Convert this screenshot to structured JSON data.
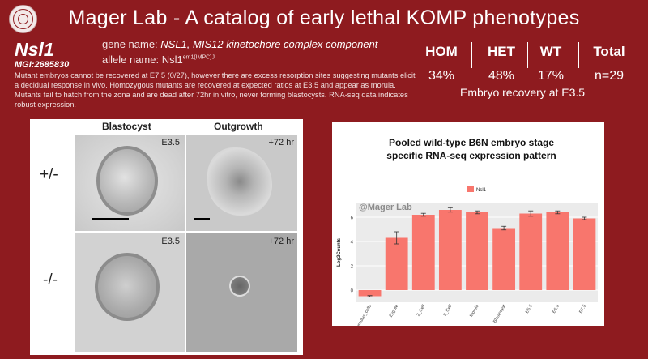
{
  "header": {
    "title": "Mager Lab - A catalog of early lethal KOMP phenotypes",
    "gene_symbol": "Nsl1",
    "mgi_id": "MGI:2685830",
    "gene_name_label": "gene name: ",
    "gene_name": "NSL1, MIS12 kinetochore complex component",
    "allele_label": "allele name: ",
    "allele_base": "Nsl1",
    "allele_sup": "em1(IMPC)J"
  },
  "description": "Mutant embryos cannot be recovered at E7.5 (0/27), however there are excess resorption sites suggesting mutants elicit a decidual response in vivo. Homozygous mutants are recovered at expected ratios at E3.5 and appear as morula. Mutants fail to hatch from the zona and are dead after 72hr in vitro, never forming blastocysts. RNA-seq data indicates robust expression.",
  "recovery": {
    "columns": [
      {
        "label": "HOM",
        "value": "34%"
      },
      {
        "label": "HET",
        "value": "48%"
      },
      {
        "label": "WT",
        "value": "17%"
      },
      {
        "label": "Total",
        "value": "n=29"
      }
    ],
    "caption": "Embryo recovery at E3.5"
  },
  "images": {
    "col_blastocyst": "Blastocyst",
    "col_outgrowth": "Outgrowth",
    "row_het": "+/-",
    "row_hom": "-/-",
    "stage_e35": "E3.5",
    "stage_72": "+72 hr"
  },
  "chart_data": {
    "type": "bar",
    "title": "Pooled wild-type B6N embryo stage specific RNA-seq expression pattern",
    "watermark": "@Mager Lab",
    "ylabel": "Log2Counts",
    "xlabel": "",
    "legend": {
      "label": "Nsl1",
      "position": "top-right",
      "color": "#f8766d"
    },
    "categories": [
      "Cumulus_cells",
      "Zygote",
      "2_Cell",
      "8_Cell",
      "Morula",
      "Blastocyst",
      "E5.5",
      "E6.5",
      "E7.5"
    ],
    "values": [
      -0.5,
      4.3,
      6.2,
      6.6,
      6.4,
      5.1,
      6.3,
      6.4,
      5.9
    ],
    "errors": [
      0.05,
      0.5,
      0.12,
      0.18,
      0.12,
      0.15,
      0.22,
      0.12,
      0.1
    ],
    "yticks": [
      0,
      2,
      4,
      6
    ],
    "ylim": [
      -1,
      7.2
    ],
    "grid": true
  }
}
